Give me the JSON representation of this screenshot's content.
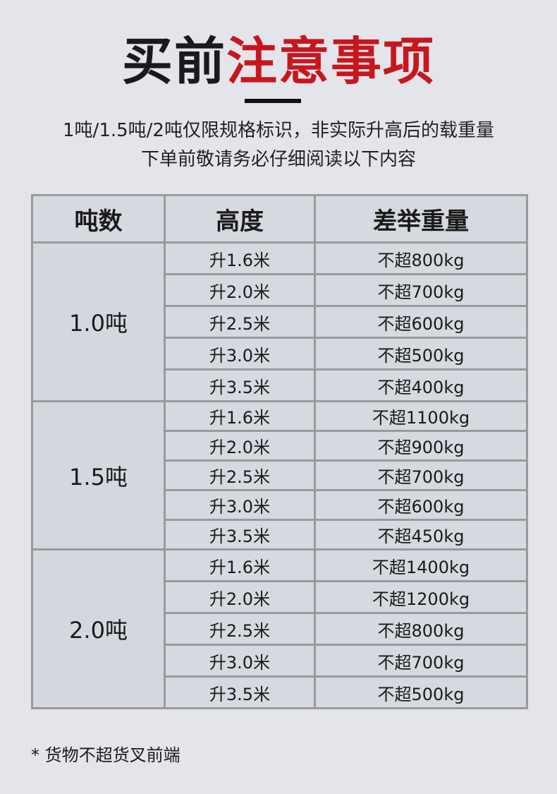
{
  "title": {
    "black": "买前",
    "red": "注意事项",
    "red_color": "#c8161d"
  },
  "subtitle": [
    "1吨/1.5吨/2吨仅限规格标识，非实际升高后的载重量",
    "下单前敬请务必仔细阅读以下内容"
  ],
  "table": {
    "headers": [
      "吨数",
      "高度",
      "差举重量"
    ],
    "groups": [
      {
        "ton": "1.0吨",
        "rows": [
          [
            "升1.6米",
            "不超800kg"
          ],
          [
            "升2.0米",
            "不超700kg"
          ],
          [
            "升2.5米",
            "不超600kg"
          ],
          [
            "升3.0米",
            "不超500kg"
          ],
          [
            "升3.5米",
            "不超400kg"
          ]
        ]
      },
      {
        "ton": "1.5吨",
        "rows": [
          [
            "升1.6米",
            "不超1100kg"
          ],
          [
            "升2.0米",
            "不超900kg"
          ],
          [
            "升2.5米",
            "不超700kg"
          ],
          [
            "升3.0米",
            "不超600kg"
          ],
          [
            "升3.5米",
            "不超450kg"
          ]
        ]
      },
      {
        "ton": "2.0吨",
        "rows": [
          [
            "升1.6米",
            "不超1400kg"
          ],
          [
            "升2.0米",
            "不超1200kg"
          ],
          [
            "升2.5米",
            "不超800kg"
          ],
          [
            "升3.0米",
            "不超700kg"
          ],
          [
            "升3.5米",
            "不超500kg"
          ]
        ]
      }
    ]
  },
  "note": "* 货物不超货叉前端"
}
